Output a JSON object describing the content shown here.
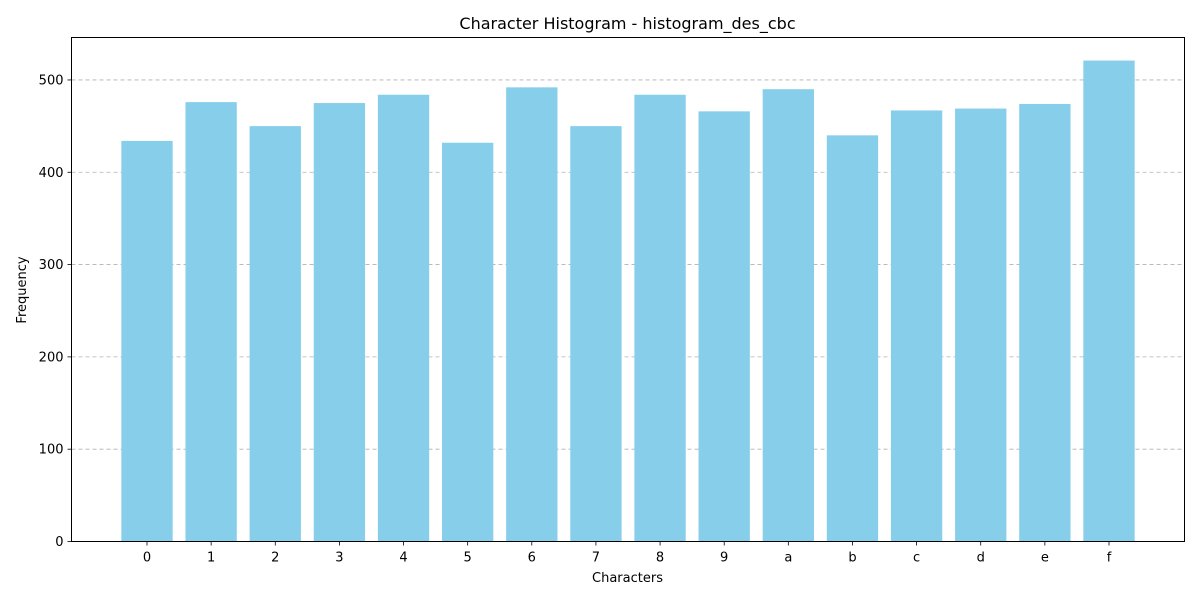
{
  "chart_data": {
    "type": "bar",
    "title": "Character Histogram - histogram_des_cbc",
    "xlabel": "Characters",
    "ylabel": "Frequency",
    "categories": [
      "0",
      "1",
      "2",
      "3",
      "4",
      "5",
      "6",
      "7",
      "8",
      "9",
      "a",
      "b",
      "c",
      "d",
      "e",
      "f"
    ],
    "values": [
      434,
      476,
      450,
      475,
      484,
      432,
      492,
      450,
      484,
      466,
      490,
      440,
      467,
      469,
      474,
      521
    ],
    "ylim": [
      0,
      546
    ],
    "yticks": [
      0,
      100,
      200,
      300,
      400,
      500
    ],
    "bar_color": "#87CEEB",
    "grid": "y-axis dashed",
    "legend": "none"
  }
}
